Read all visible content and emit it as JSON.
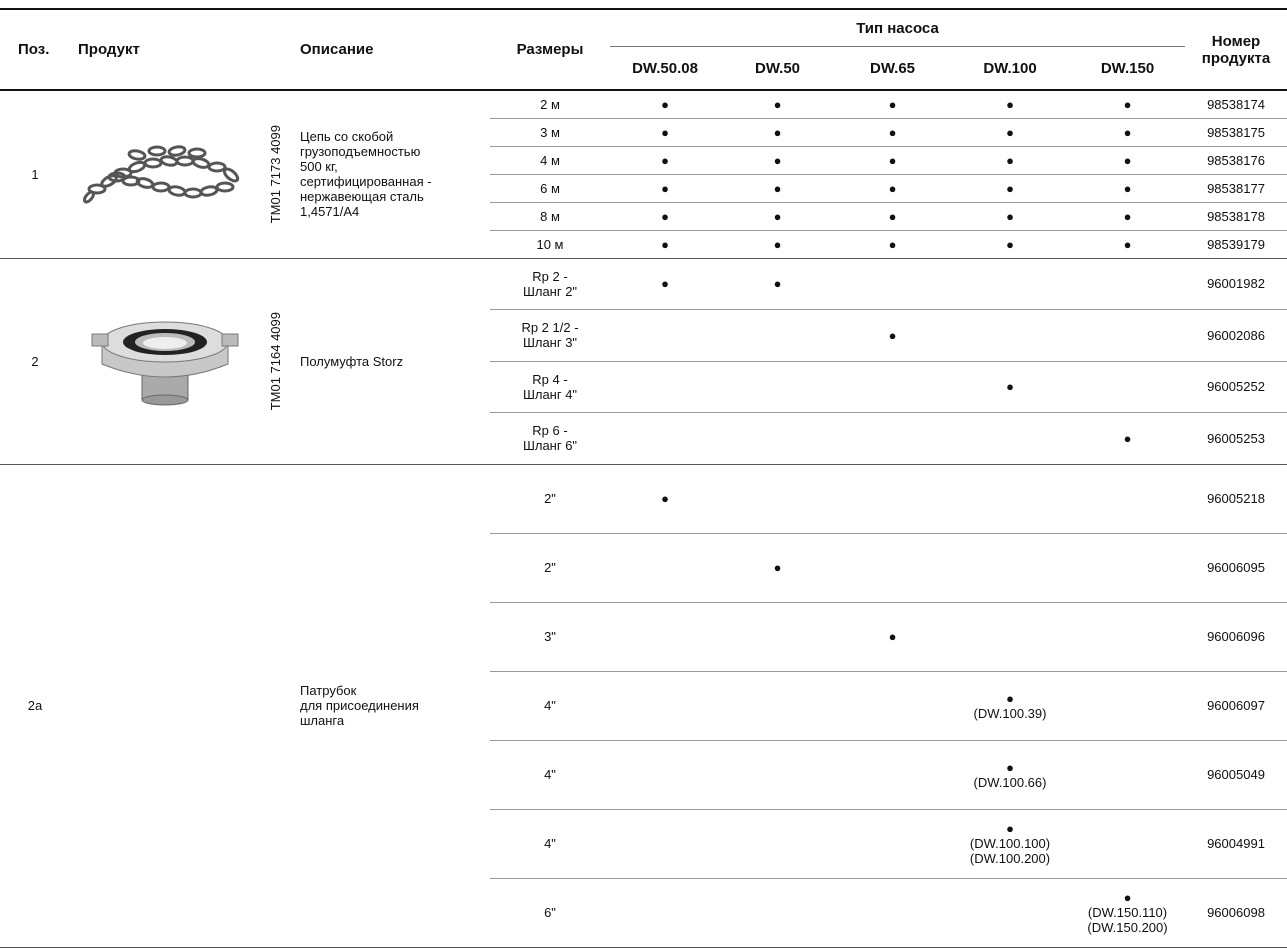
{
  "header": {
    "pos": "Поз.",
    "product": "Продукт",
    "description": "Описание",
    "sizes": "Размеры",
    "pump_type": "Тип насоса",
    "pumps": [
      "DW.50.08",
      "DW.50",
      "DW.65",
      "DW.100",
      "DW.150"
    ],
    "number": "Номер продукта"
  },
  "groups": [
    {
      "pos": "1",
      "code": "TM01 7173 4099",
      "description": [
        "Цепь со скобой",
        "грузоподъемностью",
        "500 кг,",
        "сертифицированная -",
        "нержавеющая сталь",
        "1,4571/A4"
      ],
      "rows": [
        {
          "size": [
            "2 м"
          ],
          "cells": [
            [
              "●"
            ],
            [
              "●"
            ],
            [
              "●"
            ],
            [
              "●"
            ],
            [
              "●"
            ]
          ],
          "number": "98538174"
        },
        {
          "size": [
            "3 м"
          ],
          "cells": [
            [
              "●"
            ],
            [
              "●"
            ],
            [
              "●"
            ],
            [
              "●"
            ],
            [
              "●"
            ]
          ],
          "number": "98538175"
        },
        {
          "size": [
            "4 м"
          ],
          "cells": [
            [
              "●"
            ],
            [
              "●"
            ],
            [
              "●"
            ],
            [
              "●"
            ],
            [
              "●"
            ]
          ],
          "number": "98538176"
        },
        {
          "size": [
            "6 м"
          ],
          "cells": [
            [
              "●"
            ],
            [
              "●"
            ],
            [
              "●"
            ],
            [
              "●"
            ],
            [
              "●"
            ]
          ],
          "number": "98538177"
        },
        {
          "size": [
            "8 м"
          ],
          "cells": [
            [
              "●"
            ],
            [
              "●"
            ],
            [
              "●"
            ],
            [
              "●"
            ],
            [
              "●"
            ]
          ],
          "number": "98538178"
        },
        {
          "size": [
            "10 м"
          ],
          "cells": [
            [
              "●"
            ],
            [
              "●"
            ],
            [
              "●"
            ],
            [
              "●"
            ],
            [
              "●"
            ]
          ],
          "number": "98539179"
        }
      ]
    },
    {
      "pos": "2",
      "code": "TM01 7164 4099",
      "description": [
        "Полумуфта Storz"
      ],
      "rows": [
        {
          "size": [
            "Rp 2 -",
            "Шланг 2\""
          ],
          "cells": [
            [
              "●"
            ],
            [
              "●"
            ],
            null,
            null,
            null
          ],
          "number": "96001982"
        },
        {
          "size": [
            "Rp 2 1/2 -",
            "Шланг 3\""
          ],
          "cells": [
            null,
            null,
            [
              "●"
            ],
            null,
            null
          ],
          "number": "96002086"
        },
        {
          "size": [
            "Rp 4 -",
            "Шланг 4\""
          ],
          "cells": [
            null,
            null,
            null,
            [
              "●"
            ],
            null
          ],
          "number": "96005252"
        },
        {
          "size": [
            "Rp 6 -",
            "Шланг 6\""
          ],
          "cells": [
            null,
            null,
            null,
            null,
            [
              "●"
            ]
          ],
          "number": "96005253"
        }
      ]
    },
    {
      "pos": "2a",
      "description": [
        "Патрубок",
        "для присоединения",
        "шланга"
      ],
      "rows": [
        {
          "size": [
            "2\""
          ],
          "cells": [
            [
              "●"
            ],
            null,
            null,
            null,
            null
          ],
          "number": "96005218"
        },
        {
          "size": [
            "2\""
          ],
          "cells": [
            null,
            [
              "●"
            ],
            null,
            null,
            null
          ],
          "number": "96006095"
        },
        {
          "size": [
            "3\""
          ],
          "cells": [
            null,
            null,
            [
              "●"
            ],
            null,
            null
          ],
          "number": "96006096"
        },
        {
          "size": [
            "4\""
          ],
          "cells": [
            null,
            null,
            null,
            [
              "●",
              "(DW.100.39)"
            ],
            null
          ],
          "number": "96006097"
        },
        {
          "size": [
            "4\""
          ],
          "cells": [
            null,
            null,
            null,
            [
              "●",
              "(DW.100.66)"
            ],
            null
          ],
          "number": "96005049"
        },
        {
          "size": [
            "4\""
          ],
          "cells": [
            null,
            null,
            null,
            [
              "●",
              "(DW.100.100)",
              "(DW.100.200)"
            ],
            null
          ],
          "number": "96004991"
        },
        {
          "size": [
            "6\""
          ],
          "cells": [
            null,
            null,
            null,
            null,
            [
              "●",
              "(DW.150.110)",
              "(DW.150.200)"
            ]
          ],
          "number": "96006098"
        }
      ]
    }
  ]
}
